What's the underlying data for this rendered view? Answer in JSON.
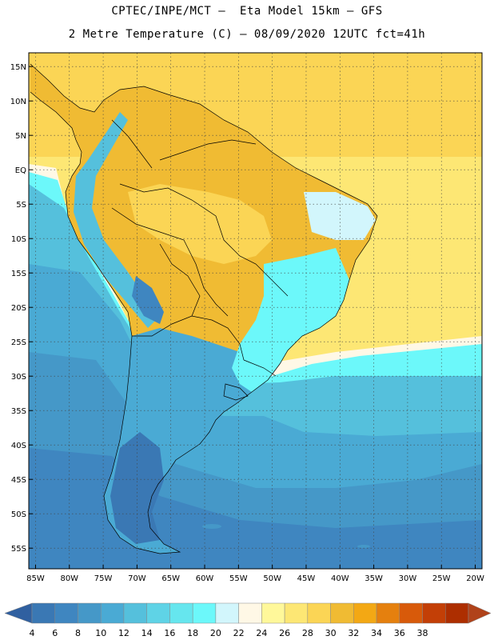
{
  "header": {
    "line1": "CPTEC/INPE/MCT –  Eta Model 15km – GFS",
    "line2": "2 Metre Temperature (C) – 08/09/2020 12UTC fct=41h"
  },
  "map": {
    "lat_labels": [
      "15N",
      "10N",
      "5N",
      "EQ",
      "5S",
      "10S",
      "15S",
      "20S",
      "25S",
      "30S",
      "35S",
      "40S",
      "45S",
      "50S",
      "55S"
    ],
    "lat_values": [
      15,
      10,
      5,
      0,
      -5,
      -10,
      -15,
      -20,
      -25,
      -30,
      -35,
      -40,
      -45,
      -50,
      -55
    ],
    "lon_labels": [
      "85W",
      "80W",
      "75W",
      "70W",
      "65W",
      "60W",
      "55W",
      "50W",
      "45W",
      "40W",
      "35W",
      "30W",
      "25W",
      "20W"
    ],
    "lon_values": [
      -85,
      -80,
      -75,
      -70,
      -65,
      -60,
      -55,
      -50,
      -45,
      -40,
      -35,
      -30,
      -25,
      -20
    ],
    "lat_range": [
      -58,
      17
    ],
    "lon_range": [
      -86,
      -19
    ],
    "grid": "dotted"
  },
  "colorbar": {
    "labels": [
      "4",
      "6",
      "8",
      "10",
      "12",
      "14",
      "16",
      "18",
      "20",
      "22",
      "24",
      "26",
      "28",
      "30",
      "32",
      "34",
      "36",
      "38"
    ],
    "colors": [
      "#3a78b4",
      "#3f86c0",
      "#4598c8",
      "#4aaad4",
      "#55c0dc",
      "#5fd3e6",
      "#66e6ee",
      "#6cf8fa",
      "#d2f6fc",
      "#fff8e6",
      "#fff89a",
      "#fde774",
      "#fbd555",
      "#f0bb33",
      "#f3a814",
      "#e5800e",
      "#d85a0a",
      "#c33f06",
      "#ad2e00"
    ],
    "low_color": "#3060a0",
    "high_color": "#b0421a"
  }
}
